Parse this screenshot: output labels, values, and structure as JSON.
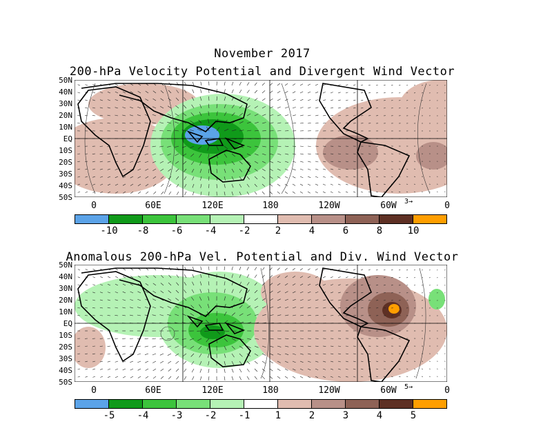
{
  "header": {
    "month": "November 2017"
  },
  "top": {
    "title": "200-hPa Velocity Potential and Divergent Wind Vector",
    "ref_vector": "3",
    "cbar_labels": [
      "-10",
      "-8",
      "-6",
      "-4",
      "-2",
      "2",
      "4",
      "6",
      "8",
      "10"
    ],
    "colors": [
      "#5ba3e8",
      "#109a1a",
      "#3cc43c",
      "#78e078",
      "#b5f2b5",
      "#ffffff",
      "#e0bcb0",
      "#b89088",
      "#8e6256",
      "#5e3024",
      "#ff9e00"
    ]
  },
  "bottom": {
    "title": "Anomalous 200-hPa Vel. Potential and Div. Wind Vector",
    "ref_vector": "5",
    "cbar_labels": [
      "-5",
      "-4",
      "-3",
      "-2",
      "-1",
      "1",
      "2",
      "3",
      "4",
      "5"
    ],
    "colors": [
      "#5ba3e8",
      "#109a1a",
      "#3cc43c",
      "#78e078",
      "#b5f2b5",
      "#ffffff",
      "#e0bcb0",
      "#b89088",
      "#8e6256",
      "#5e3024",
      "#ff9e00"
    ]
  },
  "axes": {
    "lat_labels": [
      "50N",
      "40N",
      "30N",
      "20N",
      "10N",
      "EQ",
      "10S",
      "20S",
      "30S",
      "40S",
      "50S"
    ],
    "lon_labels": [
      "0",
      "60E",
      "120E",
      "180",
      "120W",
      "60W",
      "0"
    ]
  }
}
